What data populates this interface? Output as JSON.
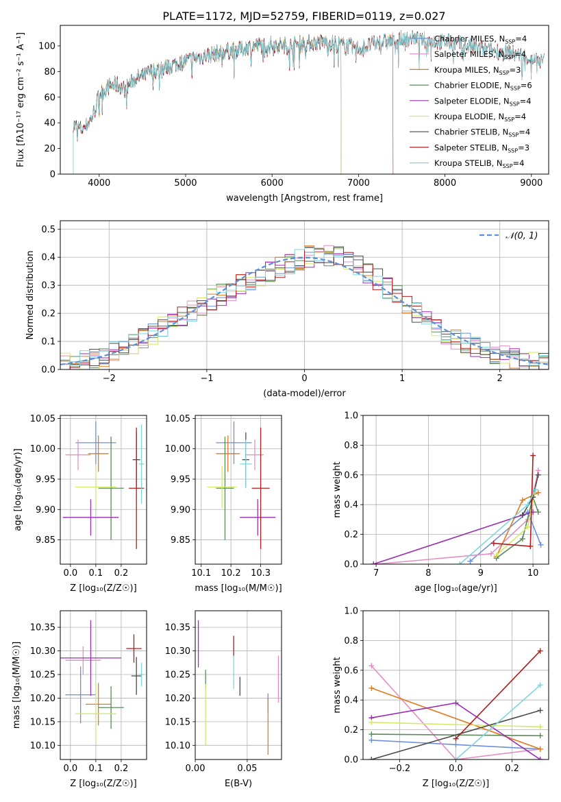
{
  "figure": {
    "title": "PLATE=1172, MJD=52759, FIBERID=0119, z=0.027"
  },
  "series_colors": {
    "Chabrier MILES": "#6b8fd9",
    "Salpeter MILES": "#e58ec4",
    "Kroupa MILES": "#e07a1f",
    "Chabrier ELODIE": "#5a8a5a",
    "Salpeter ELODIE": "#9a2db3",
    "Kroupa ELODIE": "#d4e86a",
    "Chabrier STELIB": "#4a4a4a",
    "Salpeter STELIB": "#b01c1c",
    "Kroupa STELIB": "#7ed6dc"
  },
  "chart_data": [
    {
      "id": "spectrum",
      "type": "line",
      "xlabel": "wavelength [Angstrom, rest frame]",
      "ylabel": "Flux [fλ10⁻¹⁷ erg cm⁻² s⁻¹ A⁻¹]",
      "xlim": [
        3550,
        9200
      ],
      "ylim": [
        0,
        116
      ],
      "xticks": [
        4000,
        5000,
        6000,
        7000,
        8000,
        9000
      ],
      "yticks": [
        0,
        20,
        40,
        60,
        80,
        100
      ],
      "legend_loc": "upper right",
      "legend": [
        {
          "name": "Chabrier MILES",
          "label": "Chabrier MILES, N",
          "sub": "SSP",
          "tail": "=4"
        },
        {
          "name": "Salpeter MILES",
          "label": "Salpeter MILES, N",
          "sub": "SSP",
          "tail": "=4"
        },
        {
          "name": "Kroupa MILES",
          "label": "Kroupa MILES, N",
          "sub": "SSP",
          "tail": "=3"
        },
        {
          "name": "Chabrier ELODIE",
          "label": "Chabrier ELODIE, N",
          "sub": "SSP",
          "tail": "=6"
        },
        {
          "name": "Salpeter ELODIE",
          "label": "Salpeter ELODIE, N",
          "sub": "SSP",
          "tail": "=4"
        },
        {
          "name": "Kroupa ELODIE",
          "label": "Kroupa ELODIE, N",
          "sub": "SSP",
          "tail": "=4"
        },
        {
          "name": "Chabrier STELIB",
          "label": "Chabrier STELIB, N",
          "sub": "SSP",
          "tail": "=4"
        },
        {
          "name": "Salpeter STELIB",
          "label": "Salpeter STELIB, N",
          "sub": "SSP",
          "tail": "=3"
        },
        {
          "name": "Kroupa STELIB",
          "label": "Kroupa STELIB, N",
          "sub": "SSP",
          "tail": "=4"
        }
      ],
      "continuum": {
        "x": [
          3700,
          3800,
          3900,
          3950,
          4000,
          4100,
          4200,
          4300,
          4400,
          4500,
          4600,
          4800,
          5000,
          5200,
          5400,
          5600,
          5800,
          6000,
          6200,
          6400,
          6600,
          6800,
          7000,
          7200,
          7400,
          7600,
          7800,
          8000,
          8200,
          8400,
          8600,
          8800,
          9000,
          9150
        ],
        "y": [
          38,
          35,
          42,
          50,
          62,
          68,
          70,
          66,
          74,
          76,
          80,
          84,
          88,
          92,
          95,
          97,
          100,
          101,
          100,
          102,
          103,
          101,
          98,
          102,
          104,
          106,
          104,
          103,
          101,
          98,
          96,
          94,
          90,
          88
        ]
      },
      "cutoffs": [
        {
          "name": "Kroupa ELODIE",
          "x": 6800
        },
        {
          "name": "Chabrier ELODIE",
          "x": 6800
        },
        {
          "name": "Salpeter ELODIE",
          "x": 6800
        },
        {
          "name": "Kroupa MILES",
          "x": 7400
        },
        {
          "name": "Salpeter MILES",
          "x": 7400
        },
        {
          "name": "Chabrier MILES",
          "x": 7400
        }
      ]
    },
    {
      "id": "residuals",
      "type": "line",
      "xlabel": "(data-model)/error",
      "ylabel": "Normed distribution",
      "xlim": [
        -2.5,
        2.5
      ],
      "ylim": [
        0,
        0.53
      ],
      "xticks": [
        -2,
        -1,
        0,
        1,
        2
      ],
      "yticks": [
        0.0,
        0.1,
        0.2,
        0.3,
        0.4,
        0.5
      ],
      "legend_loc": "upper right",
      "legend_label": "𝒩(0, 1)",
      "gauss_color": "#5b8fd6"
    },
    {
      "id": "age-vs-Z",
      "type": "scatter",
      "xlabel": "Z [log₁₀(Z/Z☉)]",
      "ylabel": "age  [log₁₀(age/yr)]",
      "xlim": [
        -0.04,
        0.3
      ],
      "ylim": [
        9.81,
        10.055
      ],
      "xticks": [
        0.0,
        0.1,
        0.2
      ],
      "yticks": [
        9.85,
        9.9,
        9.95,
        10.0,
        10.05
      ],
      "points": [
        {
          "name": "Chabrier MILES",
          "x": 0.1,
          "y": 10.01,
          "xerr": 0.08,
          "yerr": 0.035
        },
        {
          "name": "Salpeter MILES",
          "x": 0.03,
          "y": 9.99,
          "xerr": 0.05,
          "yerr": 0.025
        },
        {
          "name": "Kroupa MILES",
          "x": 0.11,
          "y": 9.992,
          "xerr": 0.04,
          "yerr": 0.03
        },
        {
          "name": "Chabrier ELODIE",
          "x": 0.16,
          "y": 9.935,
          "xerr": 0.05,
          "yerr": 0.085
        },
        {
          "name": "Salpeter ELODIE",
          "x": 0.08,
          "y": 9.887,
          "xerr": 0.11,
          "yerr": 0.03
        },
        {
          "name": "Kroupa ELODIE",
          "x": 0.1,
          "y": 9.937,
          "xerr": 0.08,
          "yerr": 0.035
        },
        {
          "name": "Chabrier STELIB",
          "x": 0.26,
          "y": 9.982,
          "xerr": 0.015,
          "yerr": 0.045
        },
        {
          "name": "Salpeter STELIB",
          "x": 0.26,
          "y": 9.935,
          "xerr": 0.03,
          "yerr": 0.1
        },
        {
          "name": "Kroupa STELIB",
          "x": 0.28,
          "y": 9.975,
          "xerr": 0.01,
          "yerr": 0.065
        }
      ]
    },
    {
      "id": "age-vs-mass",
      "type": "scatter",
      "xlabel": "mass [log₁₀(M/M☉)]",
      "ylabel": "",
      "xlim": [
        10.08,
        10.37
      ],
      "ylim": [
        9.81,
        10.055
      ],
      "xticks": [
        10.1,
        10.2,
        10.3
      ],
      "yticks": [
        9.85,
        9.9,
        9.95,
        10.0,
        10.05
      ],
      "points": [
        {
          "name": "Chabrier MILES",
          "x": 10.21,
          "y": 10.01,
          "xerr": 0.06,
          "yerr": 0.035
        },
        {
          "name": "Salpeter MILES",
          "x": 10.28,
          "y": 9.99,
          "xerr": 0.03,
          "yerr": 0.025
        },
        {
          "name": "Kroupa MILES",
          "x": 10.19,
          "y": 9.992,
          "xerr": 0.04,
          "yerr": 0.03
        },
        {
          "name": "Chabrier ELODIE",
          "x": 10.18,
          "y": 9.935,
          "xerr": 0.03,
          "yerr": 0.085
        },
        {
          "name": "Salpeter ELODIE",
          "x": 10.29,
          "y": 9.887,
          "xerr": 0.06,
          "yerr": 0.03
        },
        {
          "name": "Kroupa ELODIE",
          "x": 10.17,
          "y": 9.937,
          "xerr": 0.05,
          "yerr": 0.035
        },
        {
          "name": "Chabrier STELIB",
          "x": 10.25,
          "y": 9.982,
          "xerr": 0.012,
          "yerr": 0.045
        },
        {
          "name": "Salpeter STELIB",
          "x": 10.3,
          "y": 9.935,
          "xerr": 0.03,
          "yerr": 0.1
        },
        {
          "name": "Kroupa STELIB",
          "x": 10.25,
          "y": 9.975,
          "xerr": 0.02,
          "yerr": 0.04
        }
      ]
    },
    {
      "id": "weight-vs-age",
      "type": "line",
      "xlabel": "age  [log₁₀(age/yr)]",
      "ylabel": "mass weight",
      "xlim": [
        6.75,
        10.3
      ],
      "ylim": [
        0,
        1
      ],
      "xticks": [
        7,
        8,
        9,
        10
      ],
      "yticks": [
        0.0,
        0.2,
        0.4,
        0.6,
        0.8,
        1.0
      ],
      "series": [
        {
          "name": "Chabrier MILES",
          "x": [
            8.8,
            9.9,
            10.15
          ],
          "y": [
            0.02,
            0.35,
            0.13
          ]
        },
        {
          "name": "Salpeter MILES",
          "x": [
            7.0,
            9.2,
            9.9,
            10.1
          ],
          "y": [
            0.0,
            0.07,
            0.3,
            0.63
          ]
        },
        {
          "name": "Kroupa MILES",
          "x": [
            9.3,
            9.8,
            10.1
          ],
          "y": [
            0.05,
            0.43,
            0.48
          ]
        },
        {
          "name": "Chabrier ELODIE",
          "x": [
            9.3,
            9.8,
            10.0,
            10.1
          ],
          "y": [
            0.04,
            0.17,
            0.45,
            0.35
          ]
        },
        {
          "name": "Salpeter ELODIE",
          "x": [
            6.95,
            9.8,
            10.0
          ],
          "y": [
            0.0,
            0.33,
            0.35
          ]
        },
        {
          "name": "Kroupa ELODIE",
          "x": [
            9.3,
            9.9,
            10.05
          ],
          "y": [
            0.06,
            0.25,
            0.5
          ]
        },
        {
          "name": "Chabrier STELIB",
          "x": [
            9.8,
            10.0,
            10.1
          ],
          "y": [
            0.33,
            0.45,
            0.6
          ]
        },
        {
          "name": "Salpeter STELIB",
          "x": [
            9.25,
            9.95,
            10.0
          ],
          "y": [
            0.14,
            0.12,
            0.73
          ]
        },
        {
          "name": "Kroupa STELIB",
          "x": [
            8.6,
            9.9,
            10.05
          ],
          "y": [
            0.0,
            0.4,
            0.5
          ]
        }
      ]
    },
    {
      "id": "mass-vs-Z",
      "type": "scatter",
      "xlabel": "Z [log₁₀(Z/Z☉)]",
      "ylabel": "mass [log₁₀(M/M☉)]",
      "xlim": [
        -0.04,
        0.3
      ],
      "ylim": [
        10.07,
        10.385
      ],
      "xticks": [
        0.0,
        0.1,
        0.2
      ],
      "yticks": [
        10.1,
        10.15,
        10.2,
        10.25,
        10.3,
        10.35
      ],
      "points": [
        {
          "name": "Chabrier MILES",
          "x": 0.04,
          "y": 10.207,
          "xerr": 0.06,
          "yerr": 0.06
        },
        {
          "name": "Salpeter MILES",
          "x": 0.05,
          "y": 10.28,
          "xerr": 0.07,
          "yerr": 0.03
        },
        {
          "name": "Kroupa MILES",
          "x": 0.11,
          "y": 10.187,
          "xerr": 0.05,
          "yerr": 0.045
        },
        {
          "name": "Chabrier ELODIE",
          "x": 0.16,
          "y": 10.18,
          "xerr": 0.05,
          "yerr": 0.045
        },
        {
          "name": "Salpeter ELODIE",
          "x": 0.08,
          "y": 10.285,
          "xerr": 0.12,
          "yerr": 0.08
        },
        {
          "name": "Kroupa ELODIE",
          "x": 0.1,
          "y": 10.167,
          "xerr": 0.08,
          "yerr": 0.065
        },
        {
          "name": "Chabrier STELIB",
          "x": 0.26,
          "y": 10.247,
          "xerr": 0.02,
          "yerr": 0.04
        },
        {
          "name": "Salpeter STELIB",
          "x": 0.25,
          "y": 10.305,
          "xerr": 0.03,
          "yerr": 0.03
        },
        {
          "name": "Kroupa STELIB",
          "x": 0.28,
          "y": 10.25,
          "xerr": 0.01,
          "yerr": 0.025
        }
      ]
    },
    {
      "id": "mass-vs-EBV",
      "type": "scatter",
      "xlabel": "E(B-V)",
      "ylabel": "",
      "xlim": [
        0,
        0.083
      ],
      "ylim": [
        10.07,
        10.385
      ],
      "xticks": [
        0.0,
        0.05
      ],
      "yticks": [
        10.1,
        10.15,
        10.2,
        10.25,
        10.3,
        10.35
      ],
      "points": [
        {
          "name": "Chabrier MILES",
          "x": 0.07,
          "y": 10.19,
          "xerr": 0,
          "yerr": 0.02
        },
        {
          "name": "Salpeter MILES",
          "x": 0.08,
          "y": 10.24,
          "xerr": 0,
          "yerr": 0.05
        },
        {
          "name": "Kroupa MILES",
          "x": 0.07,
          "y": 10.14,
          "xerr": 0,
          "yerr": 0.06
        },
        {
          "name": "Chabrier ELODIE",
          "x": 0.01,
          "y": 10.24,
          "xerr": 0,
          "yerr": 0.02
        },
        {
          "name": "Salpeter ELODIE",
          "x": 0.003,
          "y": 10.315,
          "xerr": 0,
          "yerr": 0.05
        },
        {
          "name": "Kroupa ELODIE",
          "x": 0.01,
          "y": 10.165,
          "xerr": 0,
          "yerr": 0.065
        },
        {
          "name": "Chabrier STELIB",
          "x": 0.043,
          "y": 10.225,
          "xerr": 0,
          "yerr": 0.02
        },
        {
          "name": "Salpeter STELIB",
          "x": 0.037,
          "y": 10.31,
          "xerr": 0,
          "yerr": 0.022
        },
        {
          "name": "Kroupa STELIB",
          "x": 0.037,
          "y": 10.255,
          "xerr": 0,
          "yerr": 0.035
        }
      ]
    },
    {
      "id": "weight-vs-Z",
      "type": "line",
      "xlabel": "Z [log₁₀(Z/Z☉)]",
      "ylabel": "mass weight",
      "xlim": [
        -0.33,
        0.33
      ],
      "ylim": [
        0,
        1
      ],
      "xticks": [
        -0.2,
        0.0,
        0.2
      ],
      "yticks": [
        0.0,
        0.2,
        0.4,
        0.6,
        0.8,
        1.0
      ],
      "series": [
        {
          "name": "Chabrier MILES",
          "x": [
            -0.3,
            0.0,
            0.3
          ],
          "y": [
            0.13,
            0.1,
            0.07
          ]
        },
        {
          "name": "Salpeter MILES",
          "x": [
            -0.3,
            0.0,
            0.3
          ],
          "y": [
            0.63,
            0.0,
            0.07
          ]
        },
        {
          "name": "Kroupa MILES",
          "x": [
            -0.3,
            0.3
          ],
          "y": [
            0.48,
            0.07
          ]
        },
        {
          "name": "Chabrier ELODIE",
          "x": [
            -0.3,
            0.3
          ],
          "y": [
            0.17,
            0.16
          ]
        },
        {
          "name": "Salpeter ELODIE",
          "x": [
            -0.3,
            0.0,
            0.3
          ],
          "y": [
            0.28,
            0.38,
            0.0
          ]
        },
        {
          "name": "Kroupa ELODIE",
          "x": [
            -0.3,
            0.3
          ],
          "y": [
            0.25,
            0.22
          ]
        },
        {
          "name": "Chabrier STELIB",
          "x": [
            -0.3,
            0.3
          ],
          "y": [
            0.0,
            0.33
          ]
        },
        {
          "name": "Salpeter STELIB",
          "x": [
            0.0,
            0.3
          ],
          "y": [
            0.14,
            0.73
          ]
        },
        {
          "name": "Kroupa STELIB",
          "x": [
            0.0,
            0.3
          ],
          "y": [
            0.0,
            0.5
          ]
        }
      ]
    }
  ]
}
